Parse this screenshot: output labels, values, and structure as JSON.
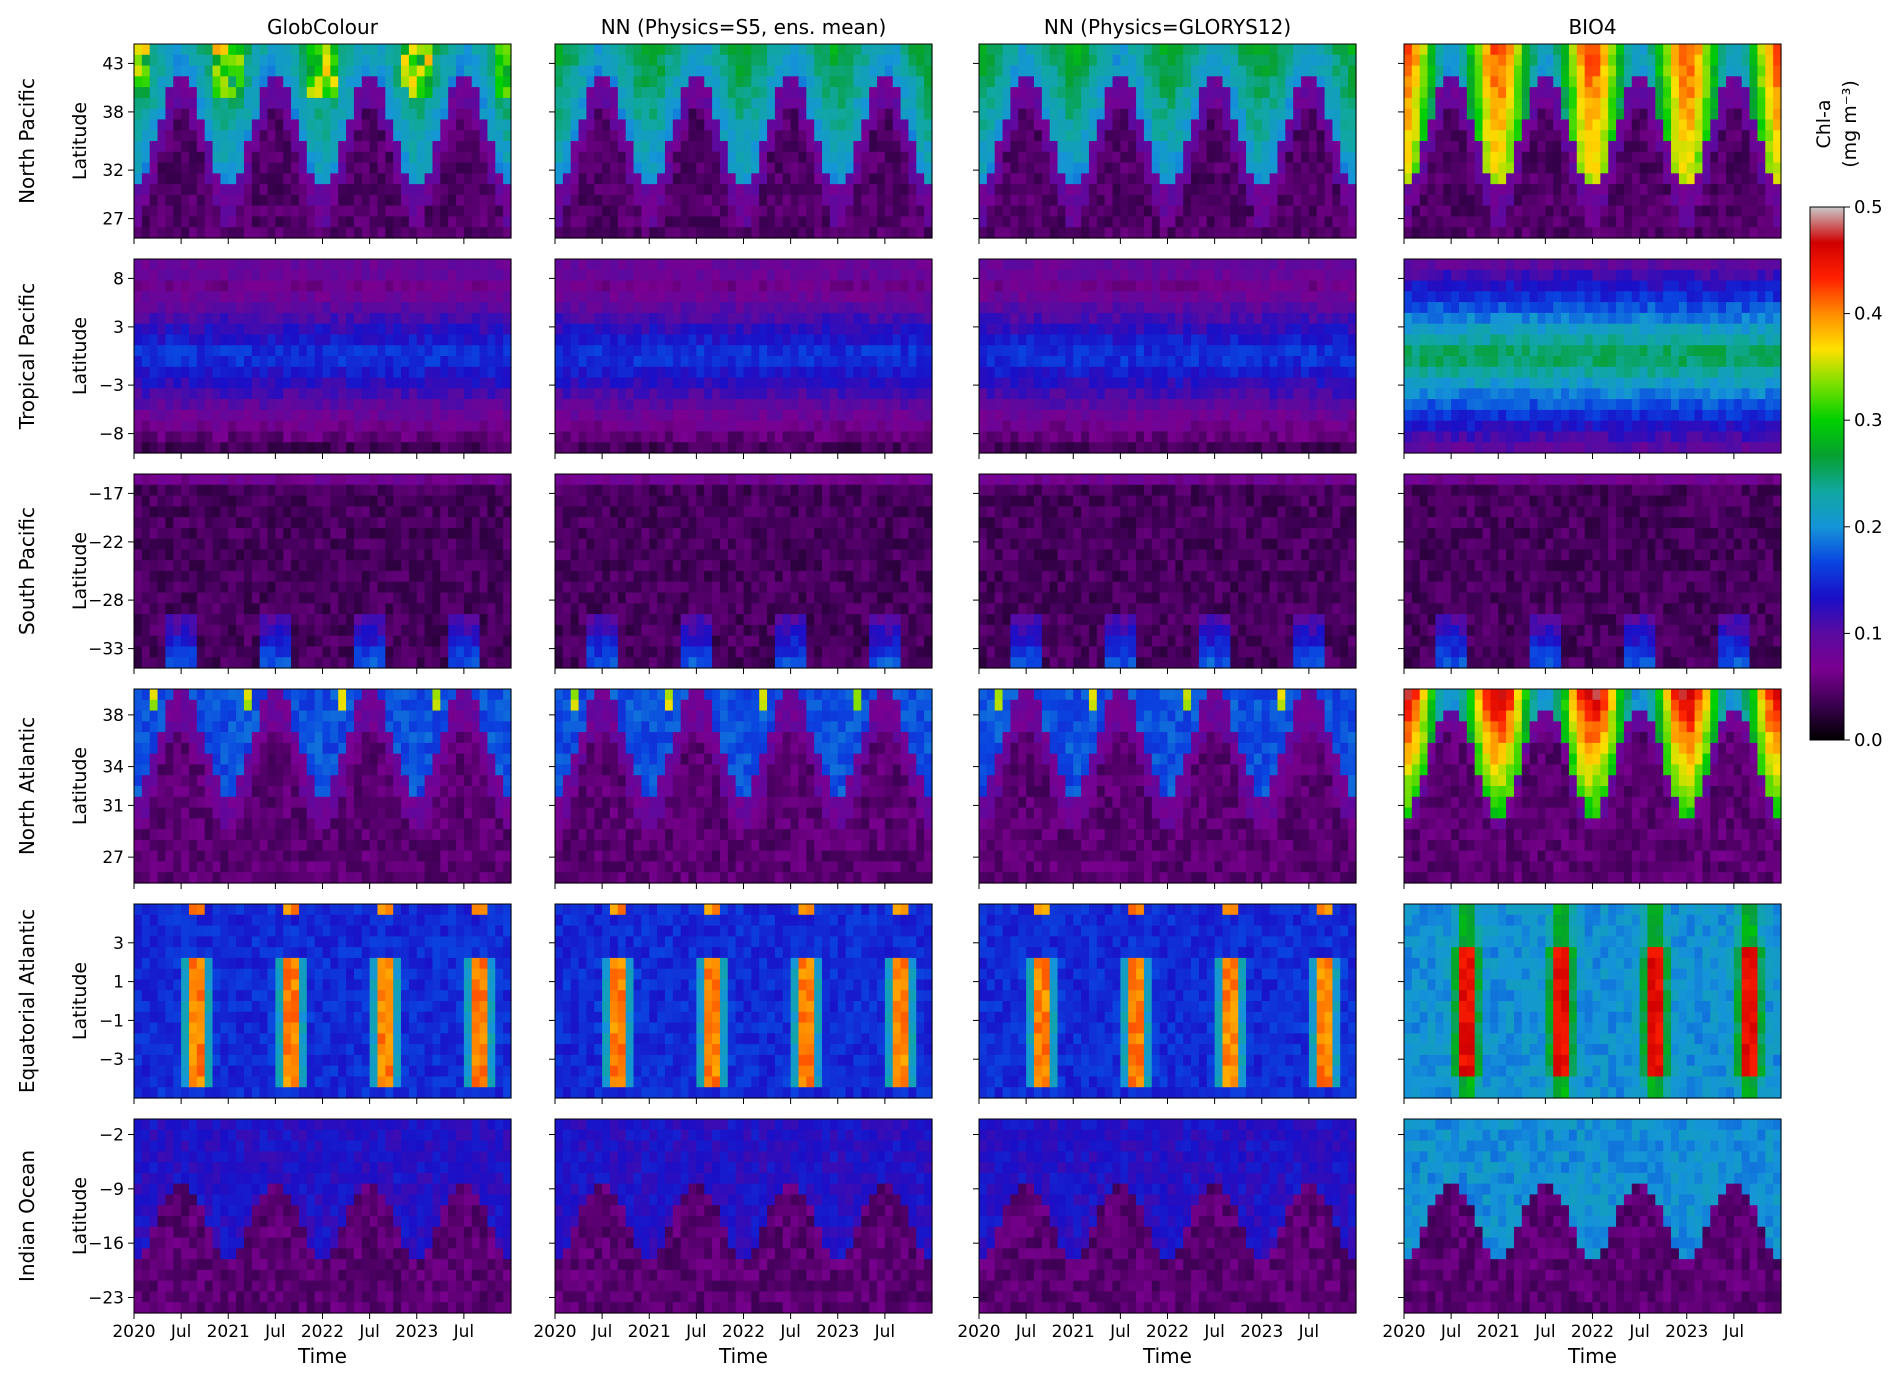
{
  "chart_data": {
    "type": "heatmap",
    "columns": [
      "GlobColour",
      "NN (Physics=S5, ens. mean)",
      "NN (Physics=GLORYS12)",
      "BIO4"
    ],
    "regions": [
      {
        "name": "North Pacific",
        "ticks": [
          "43",
          "38",
          "32",
          "27"
        ],
        "tick_values": [
          43,
          38,
          32,
          27
        ],
        "lat_range": [
          25,
          45
        ]
      },
      {
        "name": "Tropical Pacific",
        "ticks": [
          "8",
          "3",
          "−3",
          "−8"
        ],
        "tick_values": [
          8,
          3,
          -3,
          -8
        ],
        "lat_range": [
          -10,
          10
        ]
      },
      {
        "name": "South Pacific",
        "ticks": [
          "−17",
          "−22",
          "−28",
          "−33"
        ],
        "tick_values": [
          -17,
          -22,
          -28,
          -33
        ],
        "lat_range": [
          -35,
          -15
        ]
      },
      {
        "name": "North Atlantic",
        "ticks": [
          "38",
          "34",
          "31",
          "27"
        ],
        "tick_values": [
          38,
          34,
          31,
          27
        ],
        "lat_range": [
          25,
          40
        ]
      },
      {
        "name": "Equatorial Atlantic",
        "ticks": [
          "3",
          "1",
          "−1",
          "−3"
        ],
        "tick_values": [
          3,
          1,
          -1,
          -3
        ],
        "lat_range": [
          -5,
          5
        ]
      },
      {
        "name": "Indian Ocean",
        "ticks": [
          "−2",
          "−9",
          "−16",
          "−23"
        ],
        "tick_values": [
          -2,
          -9,
          -16,
          -23
        ],
        "lat_range": [
          -25,
          0
        ]
      }
    ],
    "ylabel": "Latitude",
    "xlabel": "Time",
    "x_ticks": [
      "2020",
      "Jul",
      "2021",
      "Jul",
      "2022",
      "Jul",
      "2023",
      "Jul"
    ],
    "x_tick_values": [
      0,
      6,
      12,
      18,
      24,
      30,
      36,
      42
    ],
    "x_range_months": [
      0,
      48
    ],
    "colorbar": {
      "label_line1": "Chl-a",
      "label_line2": "(mg m⁻³)",
      "ticks": [
        "0.0",
        "0.1",
        "0.2",
        "0.3",
        "0.4",
        "0.5"
      ],
      "tick_values": [
        0,
        0.1,
        0.2,
        0.3,
        0.4,
        0.5
      ],
      "range": [
        0,
        0.5
      ],
      "colormap": [
        "#000000",
        "#3a0050",
        "#7a0090",
        "#5a0aa0",
        "#1a0fc8",
        "#0a45e0",
        "#1595d8",
        "#10a8a0",
        "#06a030",
        "#00d000",
        "#78e000",
        "#ffe000",
        "#ff8c00",
        "#ff2000",
        "#d00000",
        "#c8c8c8"
      ]
    }
  }
}
